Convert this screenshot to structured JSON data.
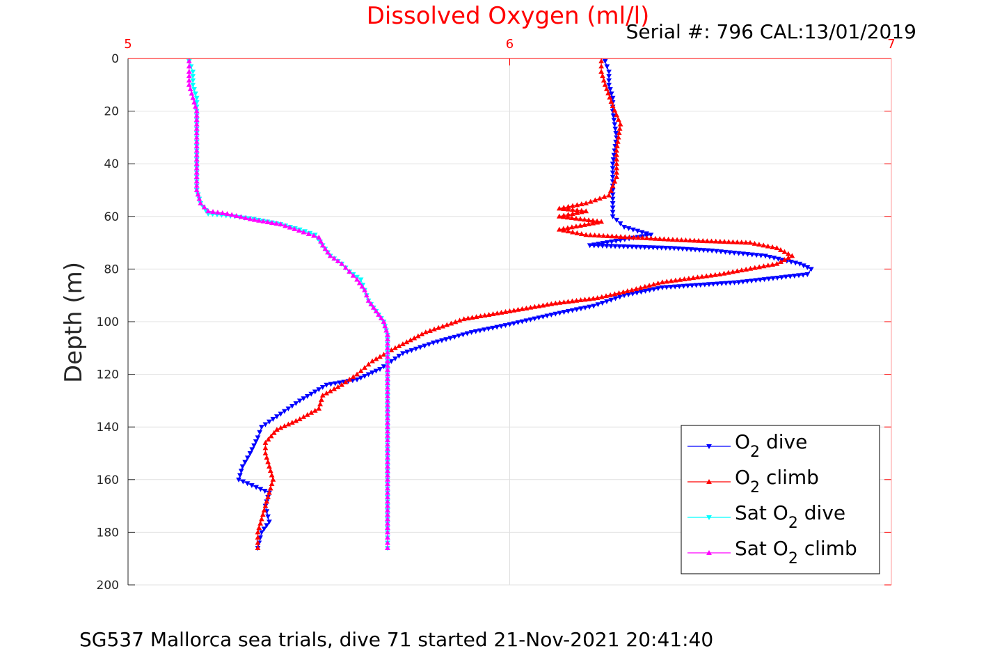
{
  "chart_data": {
    "type": "line",
    "title": "Dissolved Oxygen (ml/l)",
    "serial": "Serial #: 796  CAL:13/01/2019",
    "ylabel": "Depth (m)",
    "caption": "SG537 Mallorca sea trials, dive 71 started 21-Nov-2021 20:41:40",
    "xlim": [
      5,
      7
    ],
    "ylim": [
      0,
      200
    ],
    "y_reversed": true,
    "x_axis_location": "top",
    "x_ticks": [
      "5",
      "6",
      "7"
    ],
    "y_ticks": [
      "0",
      "20",
      "40",
      "60",
      "80",
      "100",
      "120",
      "140",
      "160",
      "180",
      "200"
    ],
    "grid": true,
    "legend_location": "bottom-right",
    "series": [
      {
        "name": "O2 dive",
        "label_main": "O",
        "label_sub": "2",
        "label_rest": " dive",
        "color": "#0000ff",
        "marker": "triangle-down",
        "points": [
          [
            6.25,
            1
          ],
          [
            6.26,
            5
          ],
          [
            6.26,
            10
          ],
          [
            6.27,
            15
          ],
          [
            6.27,
            20
          ],
          [
            6.28,
            30
          ],
          [
            6.27,
            40
          ],
          [
            6.27,
            50
          ],
          [
            6.27,
            60
          ],
          [
            6.3,
            64
          ],
          [
            6.37,
            67
          ],
          [
            6.21,
            71
          ],
          [
            6.42,
            72
          ],
          [
            6.53,
            73
          ],
          [
            6.67,
            75
          ],
          [
            6.76,
            78
          ],
          [
            6.79,
            80
          ],
          [
            6.78,
            82
          ],
          [
            6.6,
            85
          ],
          [
            6.4,
            87
          ],
          [
            6.3,
            90
          ],
          [
            6.22,
            94
          ],
          [
            6.12,
            97
          ],
          [
            6.0,
            101
          ],
          [
            5.9,
            104
          ],
          [
            5.8,
            108
          ],
          [
            5.72,
            112
          ],
          [
            5.66,
            118
          ],
          [
            5.6,
            122
          ],
          [
            5.52,
            124
          ],
          [
            5.45,
            130
          ],
          [
            5.4,
            135
          ],
          [
            5.35,
            140
          ],
          [
            5.34,
            144
          ],
          [
            5.32,
            150
          ],
          [
            5.3,
            155
          ],
          [
            5.29,
            160
          ],
          [
            5.37,
            165
          ],
          [
            5.36,
            170
          ],
          [
            5.37,
            176
          ],
          [
            5.35,
            180
          ],
          [
            5.34,
            186
          ]
        ]
      },
      {
        "name": "O2 climb",
        "label_main": "O",
        "label_sub": "2",
        "label_rest": " climb",
        "color": "#ff0000",
        "marker": "triangle-up",
        "points": [
          [
            5.34,
            186
          ],
          [
            5.34,
            180
          ],
          [
            5.35,
            175
          ],
          [
            5.36,
            170
          ],
          [
            5.37,
            165
          ],
          [
            5.38,
            160
          ],
          [
            5.37,
            155
          ],
          [
            5.36,
            150
          ],
          [
            5.36,
            146
          ],
          [
            5.39,
            141
          ],
          [
            5.45,
            137
          ],
          [
            5.5,
            133
          ],
          [
            5.51,
            128
          ],
          [
            5.56,
            124
          ],
          [
            5.6,
            120
          ],
          [
            5.64,
            115
          ],
          [
            5.7,
            110
          ],
          [
            5.78,
            104
          ],
          [
            5.88,
            99
          ],
          [
            6.0,
            96
          ],
          [
            6.12,
            93
          ],
          [
            6.23,
            91
          ],
          [
            6.32,
            88
          ],
          [
            6.4,
            85
          ],
          [
            6.55,
            82
          ],
          [
            6.7,
            78
          ],
          [
            6.74,
            75
          ],
          [
            6.7,
            72
          ],
          [
            6.63,
            70
          ],
          [
            6.45,
            69
          ],
          [
            6.2,
            67
          ],
          [
            6.13,
            65
          ],
          [
            6.24,
            62
          ],
          [
            6.13,
            60
          ],
          [
            6.2,
            58
          ],
          [
            6.13,
            57
          ],
          [
            6.2,
            55
          ],
          [
            6.26,
            52
          ],
          [
            6.28,
            45
          ],
          [
            6.28,
            35
          ],
          [
            6.29,
            25
          ],
          [
            6.27,
            18
          ],
          [
            6.25,
            10
          ],
          [
            6.24,
            5
          ],
          [
            6.24,
            1
          ]
        ]
      },
      {
        "name": "Sat O2 dive",
        "label_main": "Sat O",
        "label_sub": "2",
        "label_rest": " dive",
        "color": "#00ffff",
        "marker": "triangle-down",
        "points": [
          [
            5.16,
            1
          ],
          [
            5.17,
            5
          ],
          [
            5.17,
            10
          ],
          [
            5.18,
            15
          ],
          [
            5.18,
            20
          ],
          [
            5.18,
            30
          ],
          [
            5.18,
            40
          ],
          [
            5.18,
            50
          ],
          [
            5.19,
            55
          ],
          [
            5.21,
            59
          ],
          [
            5.28,
            60
          ],
          [
            5.33,
            61
          ],
          [
            5.4,
            63
          ],
          [
            5.45,
            65
          ],
          [
            5.49,
            67
          ],
          [
            5.51,
            71
          ],
          [
            5.53,
            75
          ],
          [
            5.56,
            78
          ],
          [
            5.58,
            81
          ],
          [
            5.61,
            84
          ],
          [
            5.62,
            88
          ],
          [
            5.63,
            92
          ],
          [
            5.65,
            96
          ],
          [
            5.67,
            100
          ],
          [
            5.68,
            105
          ],
          [
            5.68,
            110
          ],
          [
            5.68,
            120
          ],
          [
            5.68,
            140
          ],
          [
            5.68,
            160
          ],
          [
            5.68,
            180
          ],
          [
            5.68,
            186
          ]
        ]
      },
      {
        "name": "Sat O2 climb",
        "label_main": "Sat O",
        "label_sub": "2",
        "label_rest": " climb",
        "color": "#ff00ff",
        "marker": "triangle-up",
        "points": [
          [
            5.68,
            186
          ],
          [
            5.68,
            180
          ],
          [
            5.68,
            160
          ],
          [
            5.68,
            140
          ],
          [
            5.68,
            120
          ],
          [
            5.68,
            110
          ],
          [
            5.68,
            105
          ],
          [
            5.67,
            100
          ],
          [
            5.65,
            96
          ],
          [
            5.63,
            92
          ],
          [
            5.62,
            88
          ],
          [
            5.6,
            84
          ],
          [
            5.58,
            81
          ],
          [
            5.56,
            78
          ],
          [
            5.53,
            75
          ],
          [
            5.51,
            71
          ],
          [
            5.5,
            68
          ],
          [
            5.46,
            66
          ],
          [
            5.4,
            63
          ],
          [
            5.32,
            61
          ],
          [
            5.26,
            59
          ],
          [
            5.21,
            58
          ],
          [
            5.19,
            55
          ],
          [
            5.18,
            50
          ],
          [
            5.18,
            40
          ],
          [
            5.18,
            30
          ],
          [
            5.18,
            20
          ],
          [
            5.17,
            15
          ],
          [
            5.16,
            10
          ],
          [
            5.16,
            5
          ],
          [
            5.16,
            1
          ]
        ]
      }
    ]
  }
}
